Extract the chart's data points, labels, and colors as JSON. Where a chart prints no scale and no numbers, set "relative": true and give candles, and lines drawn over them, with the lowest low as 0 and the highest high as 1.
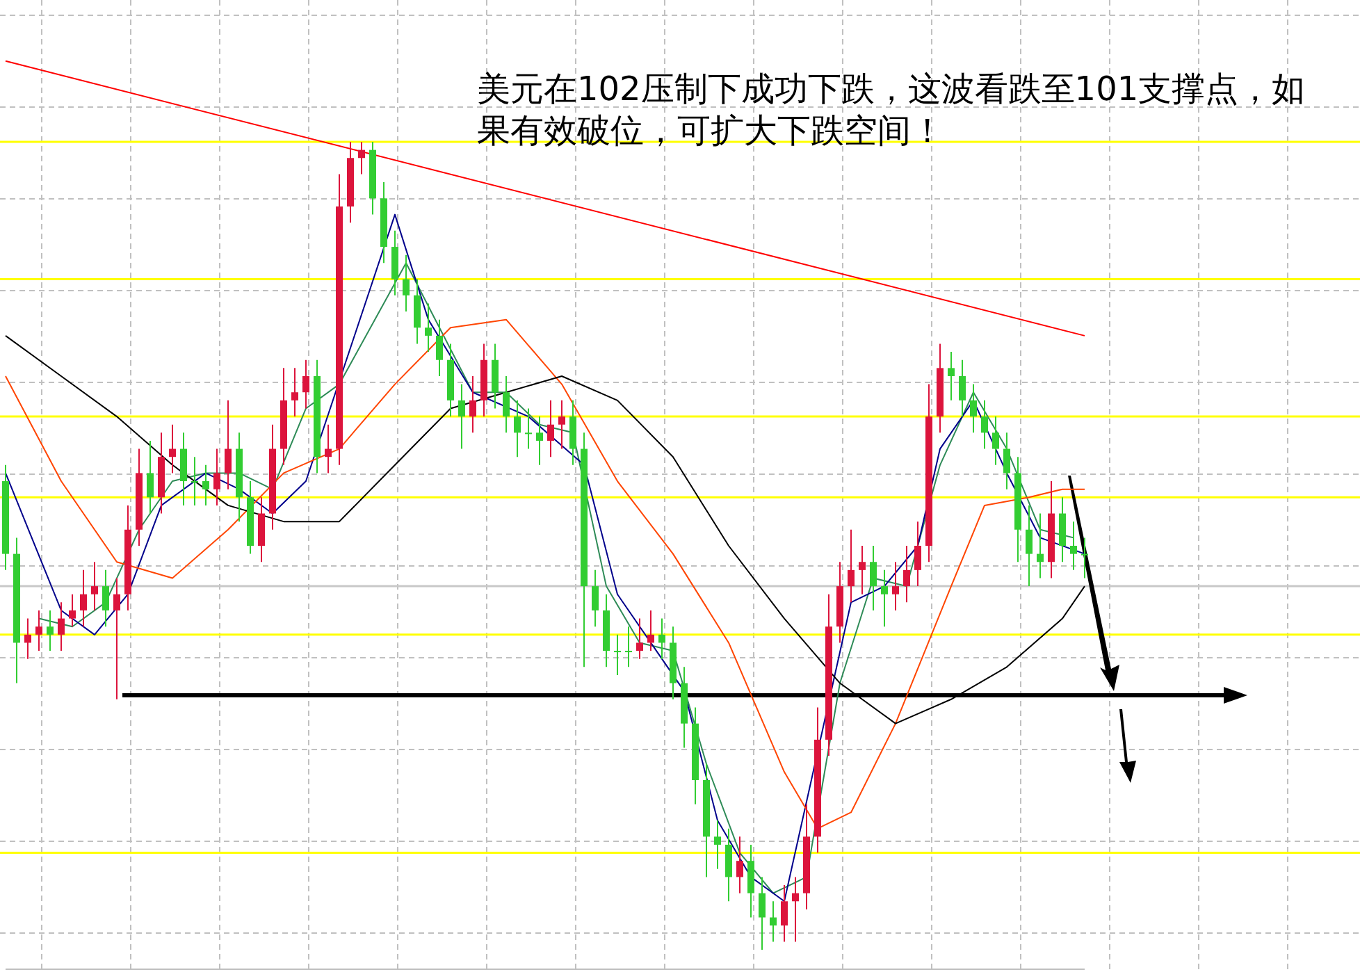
{
  "chart_data": {
    "type": "candlestick",
    "relative": true,
    "grid": true,
    "annotations": [
      "美元在102压制下成功下跌，这波看跌至101支撑点，如果有效破位，可扩大下跌空间！"
    ],
    "categories": [
      null,
      null,
      null,
      null,
      null,
      null,
      null,
      null,
      null,
      null,
      null,
      null,
      null,
      null,
      null,
      null,
      null,
      null,
      null,
      null,
      null,
      null,
      null,
      null,
      null,
      null,
      null,
      null,
      null,
      null,
      null,
      null,
      null,
      null,
      null,
      null,
      null,
      null,
      null,
      null,
      null,
      null,
      null,
      null,
      null,
      null,
      null,
      null,
      null,
      null,
      null,
      null,
      null,
      null,
      null,
      null,
      null,
      null,
      null,
      null,
      null,
      null,
      null,
      null,
      null,
      null,
      null,
      null,
      null,
      null,
      null,
      null,
      null,
      null,
      null,
      null,
      null,
      null,
      null,
      null,
      null,
      null,
      null,
      null,
      null,
      null,
      null,
      null,
      null,
      null,
      null,
      null,
      null,
      null,
      null,
      null,
      null,
      null
    ],
    "ohlc": [
      [
        0.58,
        0.6,
        0.47,
        0.49
      ],
      [
        0.49,
        0.51,
        0.33,
        0.38
      ],
      [
        0.38,
        0.41,
        0.36,
        0.39
      ],
      [
        0.39,
        0.42,
        0.37,
        0.4
      ],
      [
        0.4,
        0.42,
        0.37,
        0.39
      ],
      [
        0.39,
        0.43,
        0.37,
        0.41
      ],
      [
        0.41,
        0.44,
        0.4,
        0.42
      ],
      [
        0.42,
        0.47,
        0.4,
        0.44
      ],
      [
        0.44,
        0.48,
        0.42,
        0.45
      ],
      [
        0.45,
        0.47,
        0.4,
        0.42
      ],
      [
        0.42,
        0.46,
        0.31,
        0.44
      ],
      [
        0.44,
        0.55,
        0.42,
        0.52
      ],
      [
        0.52,
        0.62,
        0.5,
        0.59
      ],
      [
        0.59,
        0.63,
        0.54,
        0.56
      ],
      [
        0.56,
        0.64,
        0.54,
        0.61
      ],
      [
        0.61,
        0.65,
        0.59,
        0.62
      ],
      [
        0.62,
        0.64,
        0.55,
        0.58
      ],
      [
        0.58,
        0.61,
        0.55,
        0.58
      ],
      [
        0.58,
        0.6,
        0.55,
        0.57
      ],
      [
        0.57,
        0.62,
        0.55,
        0.59
      ],
      [
        0.59,
        0.68,
        0.57,
        0.62
      ],
      [
        0.62,
        0.64,
        0.53,
        0.56
      ],
      [
        0.56,
        0.58,
        0.49,
        0.5
      ],
      [
        0.5,
        0.56,
        0.48,
        0.54
      ],
      [
        0.54,
        0.65,
        0.52,
        0.62
      ],
      [
        0.62,
        0.72,
        0.6,
        0.68
      ],
      [
        0.68,
        0.72,
        0.66,
        0.69
      ],
      [
        0.69,
        0.73,
        0.67,
        0.71
      ],
      [
        0.71,
        0.73,
        0.59,
        0.61
      ],
      [
        0.61,
        0.65,
        0.59,
        0.62
      ],
      [
        0.62,
        0.96,
        0.6,
        0.92
      ],
      [
        0.92,
        1.0,
        0.9,
        0.98
      ],
      [
        0.98,
        1.0,
        0.96,
        0.99
      ],
      [
        0.99,
        1.0,
        0.91,
        0.93
      ],
      [
        0.93,
        0.95,
        0.85,
        0.87
      ],
      [
        0.87,
        0.89,
        0.81,
        0.83
      ],
      [
        0.83,
        0.86,
        0.79,
        0.81
      ],
      [
        0.81,
        0.83,
        0.75,
        0.77
      ],
      [
        0.77,
        0.8,
        0.74,
        0.76
      ],
      [
        0.76,
        0.78,
        0.71,
        0.73
      ],
      [
        0.73,
        0.75,
        0.66,
        0.68
      ],
      [
        0.68,
        0.7,
        0.62,
        0.66
      ],
      [
        0.66,
        0.71,
        0.64,
        0.68
      ],
      [
        0.68,
        0.75,
        0.66,
        0.73
      ],
      [
        0.73,
        0.75,
        0.67,
        0.69
      ],
      [
        0.69,
        0.71,
        0.64,
        0.66
      ],
      [
        0.66,
        0.68,
        0.61,
        0.64
      ],
      [
        0.64,
        0.67,
        0.62,
        0.64
      ],
      [
        0.64,
        0.66,
        0.6,
        0.63
      ],
      [
        0.63,
        0.68,
        0.61,
        0.65
      ],
      [
        0.65,
        0.68,
        0.62,
        0.66
      ],
      [
        0.66,
        0.68,
        0.6,
        0.62
      ],
      [
        0.62,
        0.64,
        0.35,
        0.45
      ],
      [
        0.45,
        0.47,
        0.4,
        0.42
      ],
      [
        0.42,
        0.44,
        0.35,
        0.37
      ],
      [
        0.37,
        0.39,
        0.34,
        0.37
      ],
      [
        0.37,
        0.4,
        0.35,
        0.37
      ],
      [
        0.37,
        0.41,
        0.36,
        0.38
      ],
      [
        0.38,
        0.42,
        0.37,
        0.39
      ],
      [
        0.39,
        0.41,
        0.36,
        0.38
      ],
      [
        0.38,
        0.4,
        0.31,
        0.33
      ],
      [
        0.33,
        0.35,
        0.25,
        0.28
      ],
      [
        0.28,
        0.3,
        0.18,
        0.21
      ],
      [
        0.21,
        0.23,
        0.09,
        0.14
      ],
      [
        0.14,
        0.16,
        0.1,
        0.13
      ],
      [
        0.13,
        0.15,
        0.06,
        0.09
      ],
      [
        0.09,
        0.14,
        0.07,
        0.11
      ],
      [
        0.11,
        0.13,
        0.04,
        0.07
      ],
      [
        0.07,
        0.09,
        0.0,
        0.04
      ],
      [
        0.04,
        0.06,
        0.01,
        0.03
      ],
      [
        0.03,
        0.08,
        0.01,
        0.06
      ],
      [
        0.06,
        0.09,
        0.01,
        0.07
      ],
      [
        0.07,
        0.18,
        0.05,
        0.14
      ],
      [
        0.14,
        0.3,
        0.12,
        0.26
      ],
      [
        0.26,
        0.44,
        0.24,
        0.4
      ],
      [
        0.4,
        0.48,
        0.38,
        0.45
      ],
      [
        0.45,
        0.52,
        0.43,
        0.47
      ],
      [
        0.47,
        0.5,
        0.44,
        0.48
      ],
      [
        0.48,
        0.5,
        0.42,
        0.45
      ],
      [
        0.45,
        0.47,
        0.4,
        0.44
      ],
      [
        0.44,
        0.48,
        0.42,
        0.45
      ],
      [
        0.45,
        0.5,
        0.43,
        0.47
      ],
      [
        0.47,
        0.53,
        0.45,
        0.5
      ],
      [
        0.5,
        0.7,
        0.48,
        0.66
      ],
      [
        0.66,
        0.75,
        0.64,
        0.72
      ],
      [
        0.72,
        0.74,
        0.68,
        0.71
      ],
      [
        0.71,
        0.73,
        0.66,
        0.68
      ],
      [
        0.68,
        0.7,
        0.64,
        0.66
      ],
      [
        0.66,
        0.68,
        0.62,
        0.64
      ],
      [
        0.64,
        0.66,
        0.6,
        0.62
      ],
      [
        0.62,
        0.64,
        0.57,
        0.59
      ],
      [
        0.59,
        0.61,
        0.48,
        0.52
      ],
      [
        0.52,
        0.55,
        0.45,
        0.49
      ],
      [
        0.49,
        0.54,
        0.46,
        0.48
      ],
      [
        0.48,
        0.58,
        0.46,
        0.54
      ],
      [
        0.54,
        0.56,
        0.48,
        0.5
      ],
      [
        0.5,
        0.53,
        0.47,
        0.49
      ],
      [
        0.49,
        0.51,
        0.46,
        0.49
      ]
    ],
    "colors": [
      "#32cd32",
      "#32cd32",
      "#dc143c",
      "#dc143c",
      "#32cd32",
      "#dc143c",
      "#dc143c",
      "#dc143c",
      "#dc143c",
      "#32cd32",
      "#dc143c",
      "#dc143c",
      "#dc143c",
      "#32cd32",
      "#dc143c",
      "#dc143c",
      "#32cd32",
      "#32cd32",
      "#32cd32",
      "#dc143c",
      "#dc143c",
      "#32cd32",
      "#32cd32",
      "#dc143c",
      "#dc143c",
      "#dc143c",
      "#dc143c",
      "#dc143c",
      "#32cd32",
      "#dc143c",
      "#dc143c",
      "#dc143c",
      "#dc143c",
      "#32cd32",
      "#32cd32",
      "#32cd32",
      "#32cd32",
      "#32cd32",
      "#32cd32",
      "#32cd32",
      "#32cd32",
      "#32cd32",
      "#dc143c",
      "#dc143c",
      "#32cd32",
      "#32cd32",
      "#32cd32",
      "#32cd32",
      "#32cd32",
      "#dc143c",
      "#dc143c",
      "#32cd32",
      "#32cd32",
      "#32cd32",
      "#32cd32",
      "#32cd32",
      "#32cd32",
      "#dc143c",
      "#dc143c",
      "#32cd32",
      "#32cd32",
      "#32cd32",
      "#32cd32",
      "#32cd32",
      "#32cd32",
      "#32cd32",
      "#dc143c",
      "#32cd32",
      "#32cd32",
      "#32cd32",
      "#dc143c",
      "#dc143c",
      "#dc143c",
      "#dc143c",
      "#dc143c",
      "#dc143c",
      "#dc143c",
      "#dc143c",
      "#32cd32",
      "#32cd32",
      "#dc143c",
      "#dc143c",
      "#dc143c",
      "#dc143c",
      "#dc143c",
      "#32cd32",
      "#32cd32",
      "#32cd32",
      "#32cd32",
      "#32cd32",
      "#32cd32",
      "#32cd32",
      "#32cd32",
      "#32cd32",
      "#dc143c",
      "#32cd32",
      "#32cd32",
      "#32cd32"
    ],
    "series": [
      {
        "type": "line",
        "color": "#2e8b57",
        "values": [
          null,
          null,
          null,
          0.41,
          null,
          null,
          0.4,
          null,
          null,
          0.43,
          null,
          null,
          0.52,
          null,
          null,
          0.58,
          null,
          null,
          0.59,
          null,
          null,
          0.59,
          null,
          null,
          0.57,
          null,
          null,
          0.67,
          null,
          null,
          0.7,
          null,
          null,
          null,
          null,
          null,
          0.85,
          null,
          null,
          0.77,
          null,
          null,
          0.69,
          null,
          null,
          0.69,
          null,
          null,
          0.65,
          null,
          null,
          0.64,
          null,
          null,
          0.45,
          null,
          null,
          0.38,
          null,
          null,
          0.37,
          null,
          null,
          0.23,
          null,
          null,
          0.12,
          null,
          null,
          0.07,
          null,
          null,
          0.09,
          null,
          null,
          0.33,
          null,
          null,
          0.46,
          null,
          null,
          0.45,
          null,
          null,
          0.6,
          null,
          null,
          0.69,
          null,
          null,
          0.62,
          null,
          null,
          0.52,
          null,
          null,
          0.51,
          null
        ]
      },
      {
        "type": "line",
        "color": "#00008b",
        "values": [
          0.59,
          null,
          null,
          null,
          null,
          0.42,
          null,
          null,
          0.39,
          null,
          null,
          0.44,
          null,
          null,
          0.55,
          null,
          null,
          null,
          0.59,
          null,
          null,
          0.57,
          null,
          null,
          0.54,
          null,
          null,
          0.58,
          null,
          null,
          null,
          null,
          null,
          null,
          null,
          0.91,
          null,
          null,
          0.78,
          null,
          null,
          null,
          0.69,
          null,
          null,
          null,
          null,
          0.66,
          null,
          null,
          null,
          null,
          0.6,
          null,
          null,
          0.44,
          null,
          null,
          0.38,
          null,
          null,
          0.32,
          null,
          null,
          0.16,
          null,
          null,
          0.09,
          null,
          null,
          0.06,
          null,
          null,
          null,
          null,
          null,
          0.43,
          null,
          null,
          0.45,
          null,
          null,
          0.5,
          null,
          0.62,
          null,
          null,
          0.68,
          null,
          null,
          0.59,
          null,
          null,
          0.51,
          null,
          null,
          null,
          0.49
        ]
      },
      {
        "type": "line",
        "color": "#ff4500",
        "values": [
          0.71,
          null,
          null,
          null,
          null,
          0.58,
          null,
          null,
          null,
          null,
          0.48,
          null,
          null,
          null,
          null,
          0.46,
          null,
          null,
          null,
          null,
          0.52,
          null,
          null,
          null,
          null,
          0.59,
          null,
          null,
          null,
          null,
          0.62,
          null,
          null,
          null,
          null,
          0.7,
          null,
          null,
          null,
          null,
          0.77,
          null,
          null,
          null,
          null,
          0.78,
          null,
          null,
          null,
          null,
          0.7,
          null,
          null,
          null,
          null,
          0.58,
          null,
          null,
          null,
          null,
          0.49,
          null,
          null,
          null,
          null,
          0.38,
          null,
          null,
          null,
          null,
          0.22,
          null,
          null,
          0.15,
          null,
          null,
          0.17,
          null,
          null,
          null,
          0.28,
          null,
          null,
          null,
          null,
          0.45,
          null,
          null,
          0.55,
          null,
          null,
          null,
          0.56,
          null,
          null,
          0.57,
          null,
          0.57
        ]
      },
      {
        "type": "line",
        "color": "#000000",
        "values": [
          0.76,
          null,
          null,
          null,
          null,
          0.71,
          null,
          null,
          null,
          null,
          0.66,
          null,
          null,
          null,
          null,
          0.6,
          null,
          null,
          null,
          null,
          0.55,
          null,
          null,
          null,
          null,
          0.53,
          null,
          null,
          null,
          null,
          0.53,
          null,
          null,
          null,
          null,
          0.6,
          null,
          null,
          null,
          null,
          0.67,
          null,
          null,
          null,
          null,
          0.69,
          null,
          null,
          null,
          null,
          0.71,
          null,
          null,
          null,
          null,
          0.68,
          null,
          null,
          null,
          null,
          0.61,
          null,
          null,
          null,
          null,
          0.5,
          null,
          null,
          null,
          null,
          0.41,
          null,
          null,
          null,
          null,
          0.33,
          null,
          null,
          null,
          null,
          0.28,
          null,
          null,
          null,
          null,
          0.31,
          null,
          null,
          null,
          null,
          0.35,
          null,
          null,
          null,
          null,
          0.41,
          null,
          0.45
        ]
      },
      {
        "type": "line",
        "color": "#ff0000",
        "values": [
          1.1,
          null,
          null,
          null,
          null,
          null,
          null,
          null,
          null,
          null,
          null,
          null,
          null,
          null,
          null,
          null,
          null,
          null,
          null,
          null,
          null,
          null,
          null,
          null,
          null,
          null,
          null,
          null,
          null,
          null,
          null,
          null,
          null,
          null,
          null,
          null,
          null,
          null,
          null,
          null,
          null,
          null,
          null,
          null,
          null,
          null,
          null,
          null,
          null,
          null,
          null,
          null,
          null,
          null,
          null,
          null,
          null,
          null,
          null,
          null,
          null,
          null,
          null,
          null,
          null,
          null,
          null,
          null,
          null,
          null,
          null,
          null,
          null,
          null,
          null,
          null,
          null,
          null,
          null,
          null,
          null,
          null,
          null,
          null,
          null,
          null,
          null,
          null,
          null,
          null,
          null,
          null,
          null,
          null,
          null,
          null,
          null,
          0.76
        ]
      }
    ],
    "ref_lines": [
      {
        "axis": "y",
        "value": 1.0,
        "color": "#ffff00"
      },
      {
        "axis": "y",
        "value": 0.83,
        "color": "#ffff00"
      },
      {
        "axis": "y",
        "value": 0.66,
        "color": "#ffff00"
      },
      {
        "axis": "y",
        "value": 0.56,
        "color": "#ffff00"
      },
      {
        "axis": "y",
        "value": 0.39,
        "color": "#ffff00"
      },
      {
        "axis": "y",
        "value": 0.12,
        "color": "#ffff00"
      },
      {
        "axis": "y",
        "value": 0.45,
        "color": "#c8c8c8"
      }
    ]
  }
}
